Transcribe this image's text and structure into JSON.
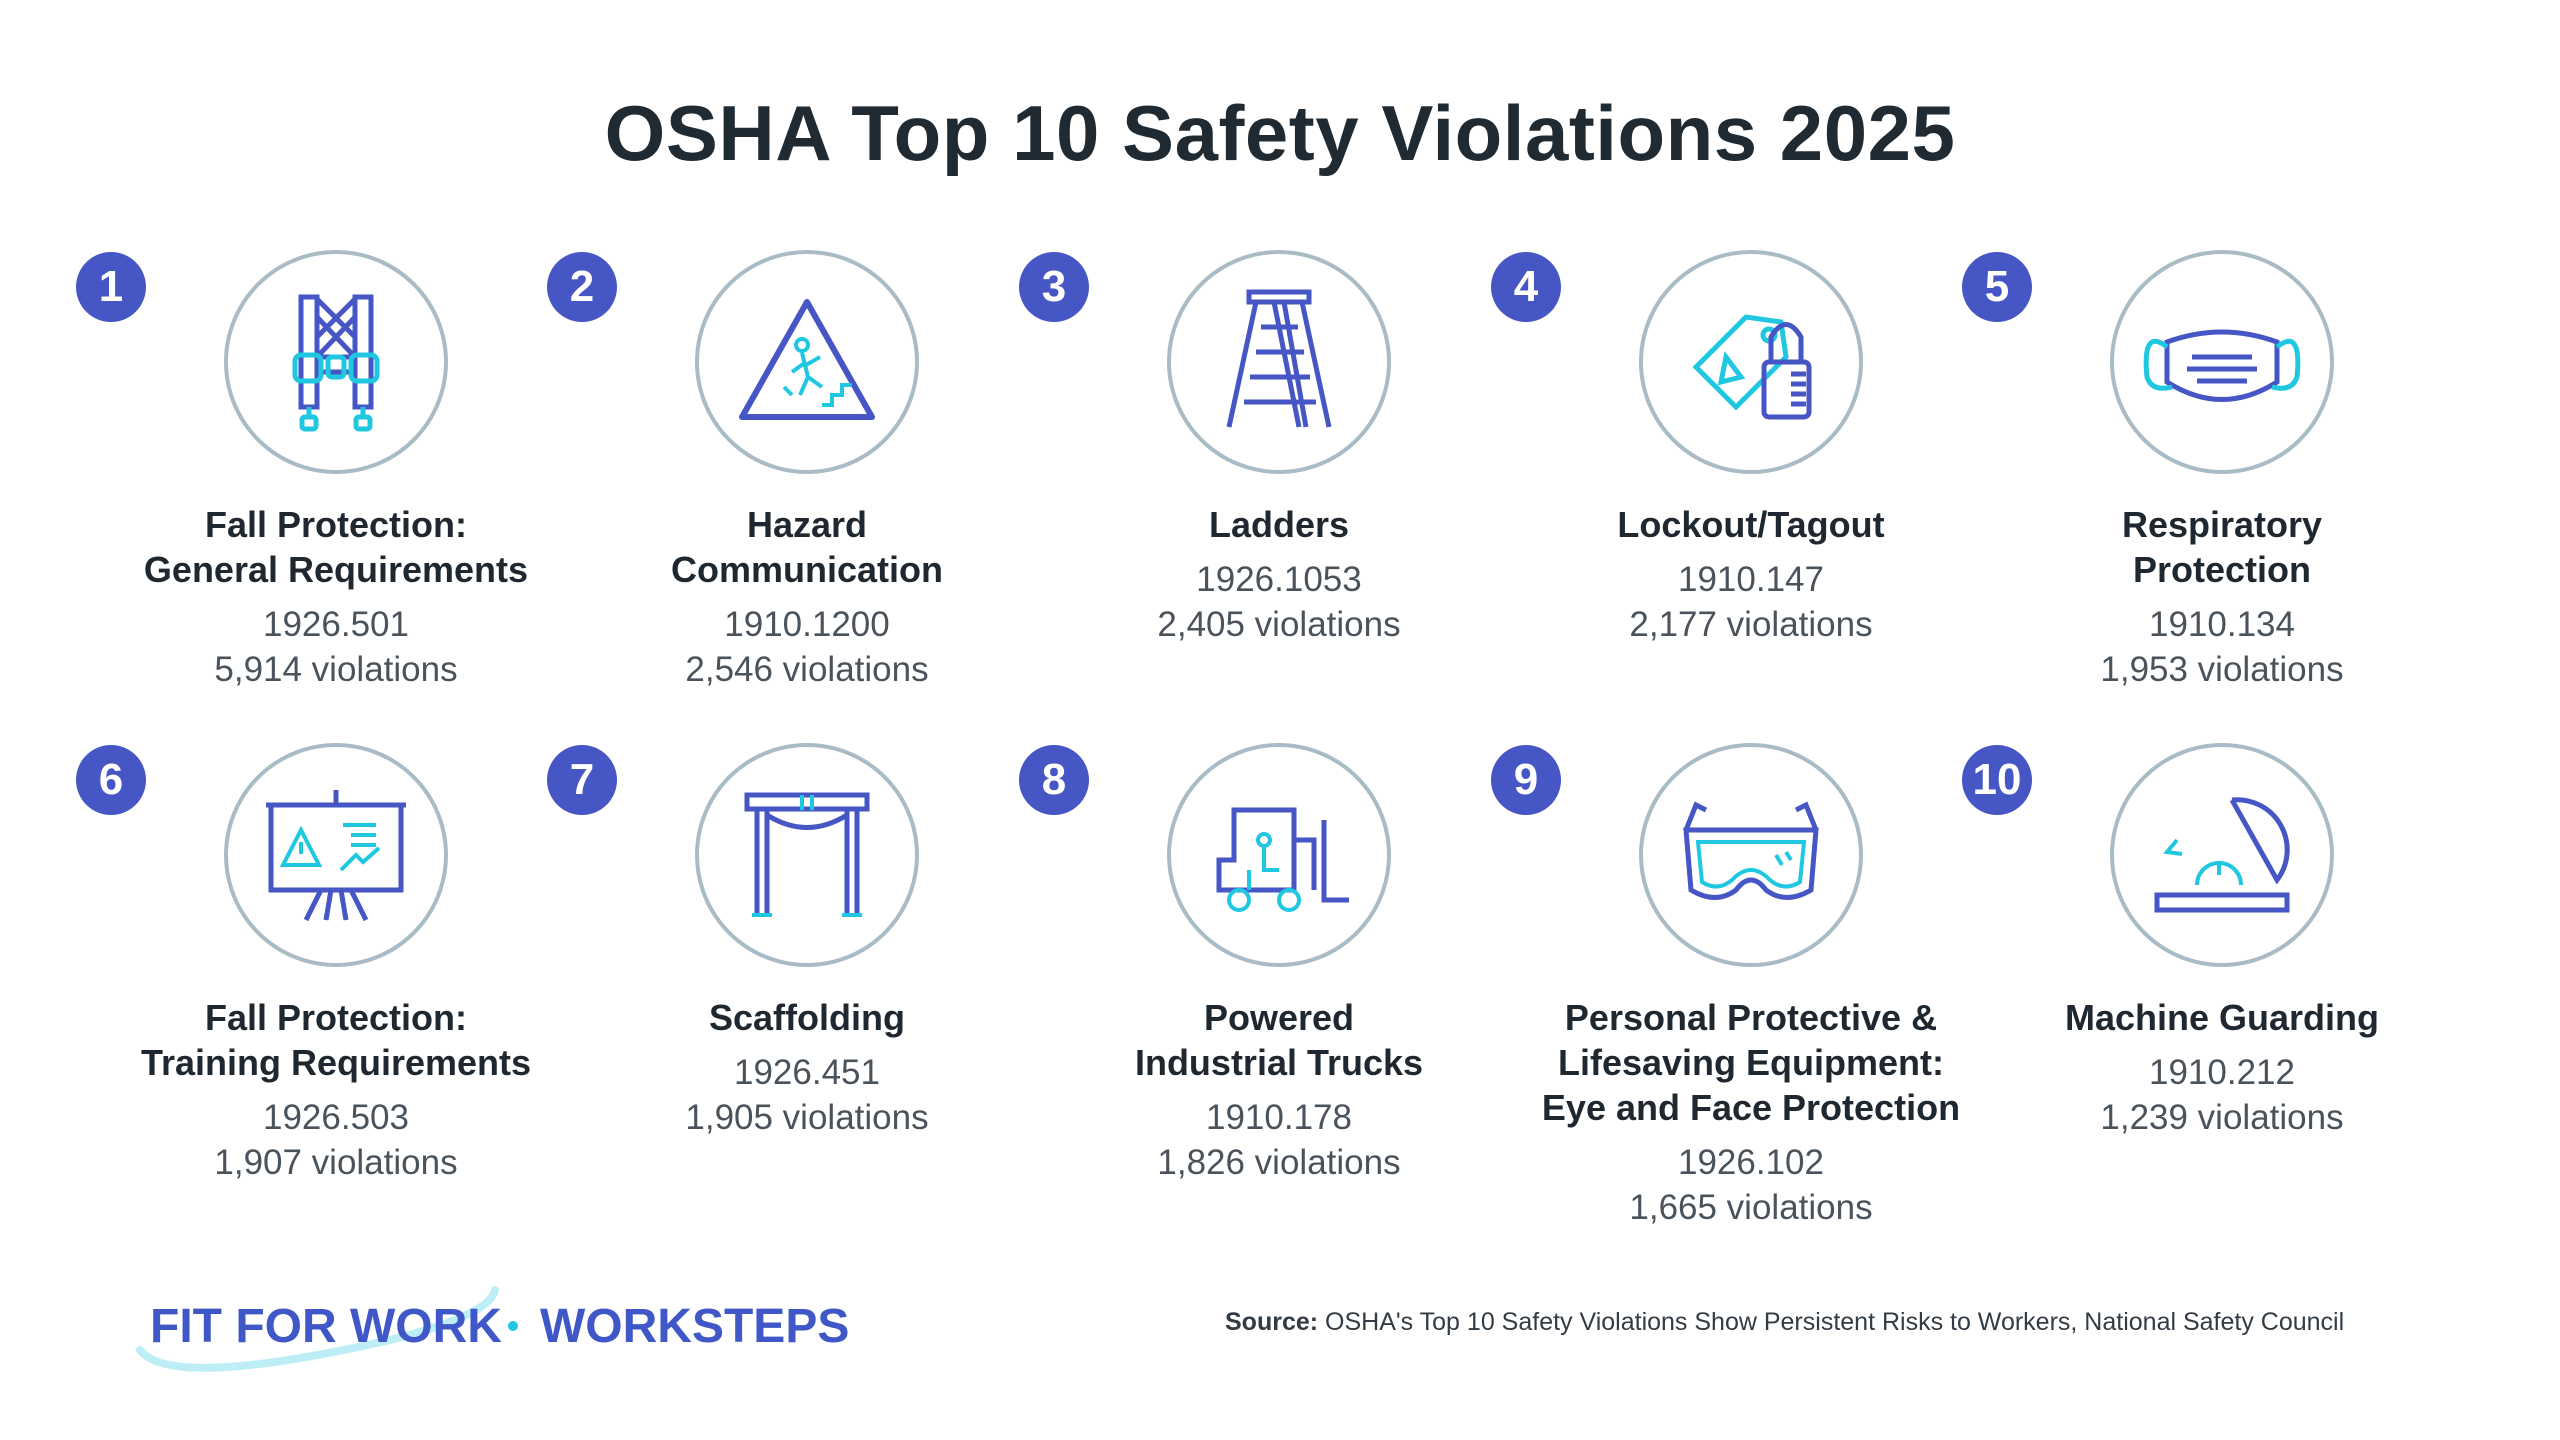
{
  "title": "OSHA Top 10 Safety Violations 2025",
  "items": [
    {
      "rank": "1",
      "name": [
        "Fall Protection:",
        "General Requirements"
      ],
      "code": "1926.501",
      "count": "5,914 violations",
      "icon": "harness-icon"
    },
    {
      "rank": "2",
      "name": [
        "Hazard",
        "Communication"
      ],
      "code": "1910.1200",
      "count": "2,546 violations",
      "icon": "hazard-sign-icon"
    },
    {
      "rank": "3",
      "name": [
        "Ladders"
      ],
      "code": "1926.1053",
      "count": "2,405 violations",
      "icon": "ladder-icon"
    },
    {
      "rank": "4",
      "name": [
        "Lockout/Tagout"
      ],
      "code": "1910.147",
      "count": "2,177 violations",
      "icon": "lock-tag-icon"
    },
    {
      "rank": "5",
      "name": [
        "Respiratory",
        "Protection"
      ],
      "code": "1910.134",
      "count": "1,953 violations",
      "icon": "mask-icon"
    },
    {
      "rank": "6",
      "name": [
        "Fall Protection:",
        "Training Requirements"
      ],
      "code": "1926.503",
      "count": "1,907 violations",
      "icon": "presentation-board-icon"
    },
    {
      "rank": "7",
      "name": [
        "Scaffolding"
      ],
      "code": "1926.451",
      "count": "1,905 violations",
      "icon": "scaffold-icon"
    },
    {
      "rank": "8",
      "name": [
        "Powered",
        "Industrial Trucks"
      ],
      "code": "1910.178",
      "count": "1,826 violations",
      "icon": "forklift-icon"
    },
    {
      "rank": "9",
      "name": [
        "Personal Protective &",
        "Lifesaving Equipment:",
        "Eye and Face Protection"
      ],
      "code": "1926.102",
      "count": "1,665 violations",
      "icon": "safety-goggles-icon"
    },
    {
      "rank": "10",
      "name": [
        "Machine Guarding"
      ],
      "code": "1910.212",
      "count": "1,239 violations",
      "icon": "saw-guard-icon"
    }
  ],
  "logo": {
    "brand1": "FIT FOR WORK",
    "separator": "•",
    "brand2": "WORKSTEPS"
  },
  "source": {
    "label": "Source:",
    "text": " OSHA's Top 10 Safety Violations Show Persistent Risks to Workers, National Safety Council"
  },
  "colors": {
    "primary": "#4656c4",
    "accent": "#1fc8e0",
    "ring": "#a9bcc6"
  }
}
